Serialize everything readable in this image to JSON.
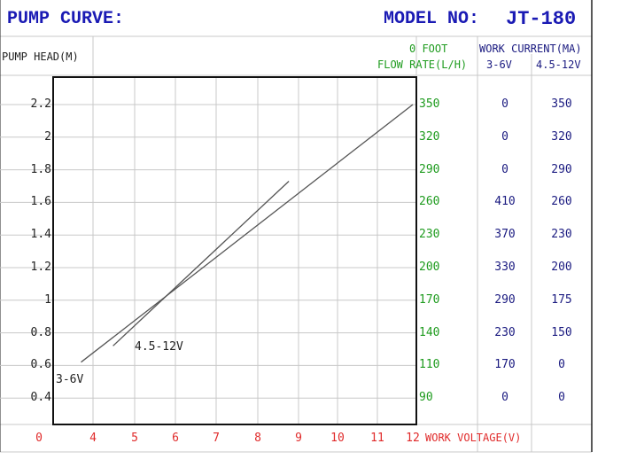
{
  "header": {
    "title": "PUMP CURVE:",
    "model_label": "MODEL NO:",
    "model_value": "JT-180"
  },
  "columns": {
    "pump_head": "PUMP HEAD(M)",
    "zero_foot": "0 FOOT",
    "flow_rate": "FLOW RATE(L/H)",
    "work_current": "WORK CURRENT(MA)",
    "v1": "3-6V",
    "v2": "4.5-12V"
  },
  "x_axis_label": "WORK VOLTAGE(V)",
  "colors": {
    "title": "#1a1ab4",
    "flow": "#1e9b1e",
    "voltage": "#e02a2a",
    "grid": "#c8c8c8"
  },
  "chart_data": {
    "type": "line",
    "title": "PUMP CURVE:",
    "ylabel": "PUMP HEAD(M)",
    "xlabel": "WORK VOLTAGE(V)",
    "x_ticks": [
      "0",
      "4",
      "5",
      "6",
      "7",
      "8",
      "9",
      "10",
      "11",
      "12"
    ],
    "y_ticks": [
      "2.2",
      "2",
      "1.8",
      "1.6",
      "1.4",
      "1.2",
      "1",
      "0.8",
      "0.6",
      "0.4"
    ],
    "flow_ticks": [
      "350",
      "320",
      "290",
      "260",
      "230",
      "200",
      "170",
      "140",
      "110",
      "90"
    ],
    "series": [
      {
        "name": "3-6V",
        "x": [
          3.7,
          12
        ],
        "y": [
          0.62,
          2.2
        ]
      },
      {
        "name": "4.5-12V",
        "x": [
          4.5,
          8.9
        ],
        "y": [
          0.72,
          1.73
        ]
      }
    ],
    "table": {
      "flow_rate": [
        350,
        320,
        290,
        260,
        230,
        200,
        170,
        140,
        110,
        90
      ],
      "current_3_6v": [
        0,
        0,
        0,
        410,
        370,
        330,
        290,
        230,
        170,
        0
      ],
      "current_4_5_12v": [
        350,
        320,
        290,
        260,
        230,
        200,
        175,
        150,
        0,
        0
      ]
    }
  }
}
